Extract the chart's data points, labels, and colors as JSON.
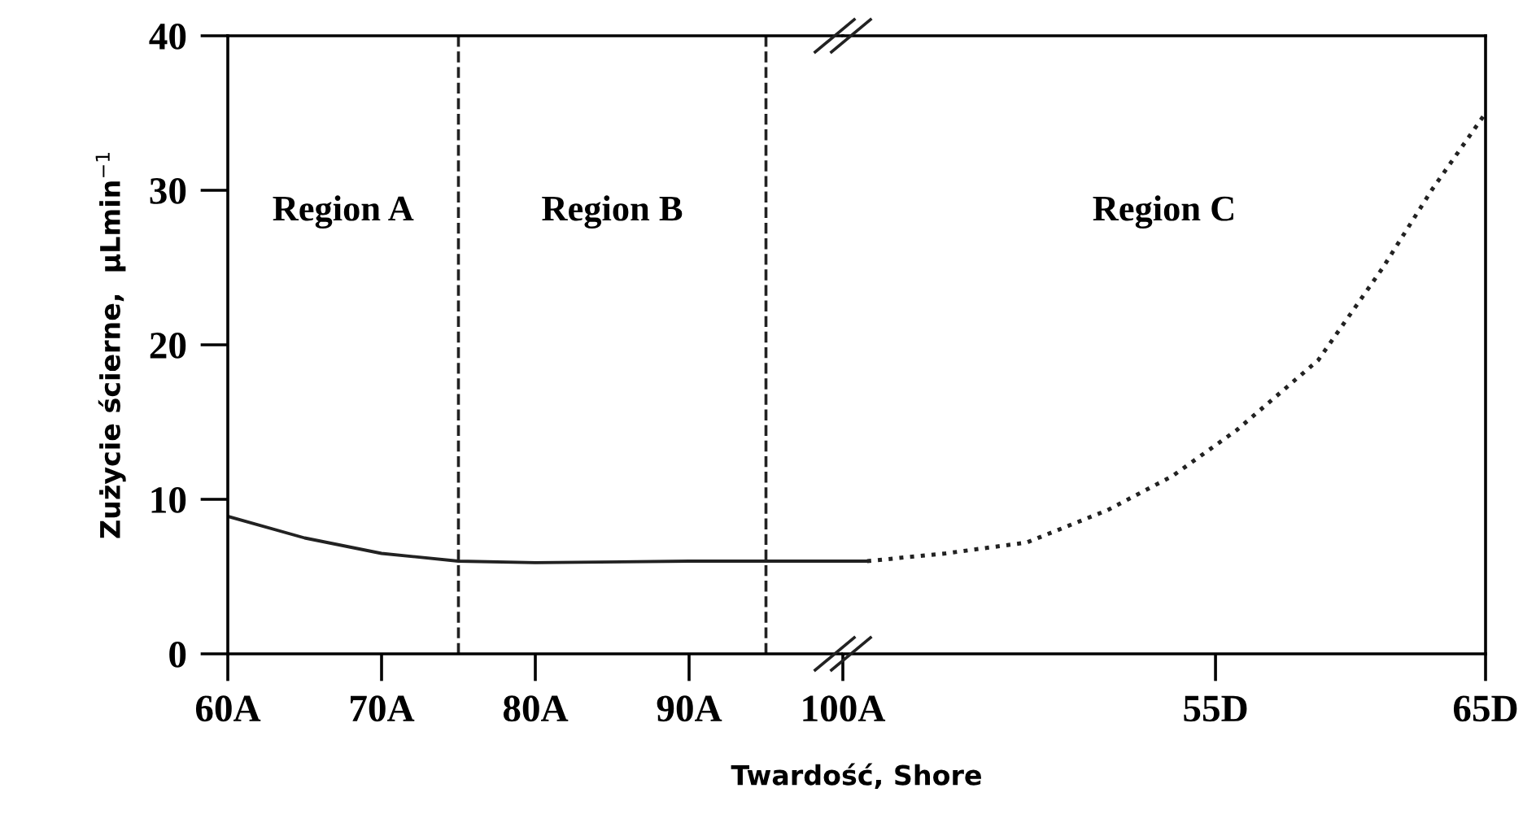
{
  "chart_data": [
    {
      "type": "line",
      "xlabel": "Twardość, Shore",
      "ylabel": "Zużycie ścierne,  μLmin$^{−1}$",
      "xlim": [
        60,
        100
      ],
      "ylim": [
        0,
        40
      ],
      "yticks": [
        0,
        10,
        20,
        30,
        40
      ],
      "xticks": [
        {
          "value": 60,
          "label": "60A"
        },
        {
          "value": 70,
          "label": "70A"
        },
        {
          "value": 80,
          "label": "80A"
        },
        {
          "value": 90,
          "label": "90A"
        },
        {
          "value": 100,
          "label": "100A"
        }
      ],
      "series": [
        {
          "color": "#222222",
          "line_style": "solid",
          "x": [
            60,
            65,
            70,
            75,
            80,
            90,
            100
          ],
          "values": [
            8.9,
            7.5,
            6.5,
            6.0,
            5.9,
            6.0,
            6.0
          ]
        }
      ],
      "ref_lines": [
        {
          "axis": "x",
          "value": 75,
          "line_style": "dashed",
          "color": "#222222"
        },
        {
          "axis": "x",
          "value": 95,
          "line_style": "dashed",
          "color": "#222222"
        }
      ],
      "annotations": [
        "Region A",
        "Region B"
      ],
      "grid": false,
      "legend": false,
      "marker": "none"
    },
    {
      "type": "line",
      "xlim": [
        41.2,
        65
      ],
      "ylim": [
        0,
        40
      ],
      "tick_labels": "x",
      "xticks": [
        {
          "value": 55,
          "label": "55D"
        },
        {
          "value": 65,
          "label": "65D"
        }
      ],
      "series": [
        {
          "color": "#222222",
          "line_style": "solid",
          "x": [
            41.2,
            42.1
          ],
          "values": [
            6.0,
            6.0
          ]
        },
        {
          "color": "#222222",
          "line_style": "dotted",
          "x": [
            42.1,
            45.0,
            48.0,
            51.0,
            53.4,
            55.8,
            58.8,
            61.2,
            63.0,
            65
          ],
          "values": [
            6.0,
            6.5,
            7.2,
            9.3,
            11.5,
            14.5,
            19,
            25,
            30,
            35
          ]
        }
      ],
      "annotations": [
        "Region C"
      ],
      "grid": false,
      "legend": false,
      "marker": "none"
    }
  ]
}
